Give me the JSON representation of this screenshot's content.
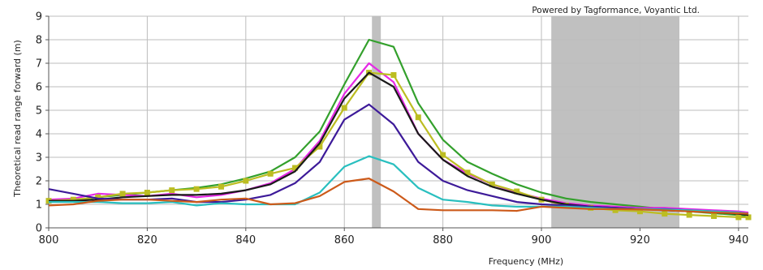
{
  "chart_data": {
    "type": "line",
    "title": "",
    "xlabel": "Frequency (MHz)",
    "ylabel": "Theoretical read range forward (m)",
    "credit": "Powered by Tagformance, Voyantic Ltd.",
    "xlim": [
      800,
      942
    ],
    "ylim": [
      0,
      9
    ],
    "x_ticks": [
      800,
      820,
      840,
      860,
      880,
      900,
      920,
      940
    ],
    "y_ticks": [
      0,
      1,
      2,
      3,
      4,
      5,
      6,
      7,
      8,
      9
    ],
    "grid": true,
    "legend": "none",
    "shaded_bands": [
      {
        "x_start": 865.6,
        "x_end": 867.4,
        "color": "#c0c0c0"
      },
      {
        "x_start": 902,
        "x_end": 928,
        "color": "#c0c0c0"
      }
    ],
    "x": [
      800,
      805,
      810,
      815,
      820,
      825,
      830,
      835,
      840,
      845,
      850,
      855,
      860,
      865,
      870,
      875,
      880,
      885,
      890,
      895,
      900,
      905,
      910,
      915,
      920,
      925,
      930,
      935,
      940,
      942
    ],
    "series": [
      {
        "color": "#33a02c",
        "marker": "none",
        "values": [
          1.1,
          1.15,
          1.3,
          1.4,
          1.5,
          1.6,
          1.7,
          1.85,
          2.1,
          2.4,
          3.0,
          4.1,
          6.1,
          8.0,
          7.7,
          5.3,
          3.75,
          2.8,
          2.3,
          1.85,
          1.5,
          1.25,
          1.1,
          1.0,
          0.9,
          0.8,
          0.7,
          0.62,
          0.55,
          0.5
        ]
      },
      {
        "color": "#e629e6",
        "marker": "none",
        "values": [
          1.2,
          1.25,
          1.45,
          1.4,
          1.35,
          1.45,
          1.3,
          1.4,
          1.6,
          1.9,
          2.5,
          3.7,
          5.7,
          7.0,
          6.2,
          4.0,
          2.9,
          2.3,
          1.85,
          1.5,
          1.25,
          1.05,
          0.95,
          0.9,
          0.85,
          0.85,
          0.8,
          0.75,
          0.7,
          0.65
        ]
      },
      {
        "color": "#bcbd22",
        "marker": "square",
        "values": [
          1.15,
          1.2,
          1.3,
          1.45,
          1.5,
          1.6,
          1.65,
          1.75,
          2.0,
          2.3,
          2.55,
          3.45,
          5.1,
          6.6,
          6.5,
          4.7,
          3.1,
          2.35,
          1.85,
          1.55,
          1.2,
          0.95,
          0.85,
          0.75,
          0.7,
          0.6,
          0.55,
          0.5,
          0.45,
          0.45
        ]
      },
      {
        "color": "#1a1a1a",
        "marker": "none",
        "values": [
          1.15,
          1.15,
          1.2,
          1.3,
          1.35,
          1.4,
          1.4,
          1.45,
          1.6,
          1.85,
          2.4,
          3.6,
          5.5,
          6.6,
          6.0,
          4.0,
          2.9,
          2.2,
          1.75,
          1.45,
          1.2,
          1.0,
          0.9,
          0.85,
          0.8,
          0.75,
          0.7,
          0.65,
          0.6,
          0.55
        ]
      },
      {
        "color": "#3d1a99",
        "marker": "none",
        "values": [
          1.65,
          1.45,
          1.25,
          1.2,
          1.2,
          1.25,
          1.1,
          1.1,
          1.2,
          1.4,
          1.9,
          2.8,
          4.6,
          5.25,
          4.4,
          2.8,
          2.0,
          1.6,
          1.35,
          1.1,
          1.0,
          0.95,
          0.9,
          0.85,
          0.8,
          0.8,
          0.75,
          0.7,
          0.65,
          0.6
        ]
      },
      {
        "color": "#29bfbf",
        "marker": "none",
        "values": [
          1.1,
          1.1,
          1.1,
          1.05,
          1.05,
          1.1,
          0.95,
          1.05,
          1.0,
          1.0,
          1.0,
          1.5,
          2.6,
          3.05,
          2.7,
          1.7,
          1.2,
          1.1,
          0.95,
          0.9,
          0.9,
          0.9,
          0.85,
          0.8,
          0.8,
          0.78,
          0.75,
          0.7,
          0.65,
          0.6
        ]
      },
      {
        "color": "#cc5a1a",
        "marker": "none",
        "values": [
          0.95,
          1.0,
          1.15,
          1.2,
          1.2,
          1.15,
          1.1,
          1.2,
          1.25,
          1.0,
          1.05,
          1.35,
          1.95,
          2.1,
          1.55,
          0.8,
          0.75,
          0.75,
          0.75,
          0.72,
          0.9,
          0.85,
          0.8,
          0.8,
          0.78,
          0.75,
          0.7,
          0.65,
          0.62,
          0.6
        ]
      }
    ]
  }
}
